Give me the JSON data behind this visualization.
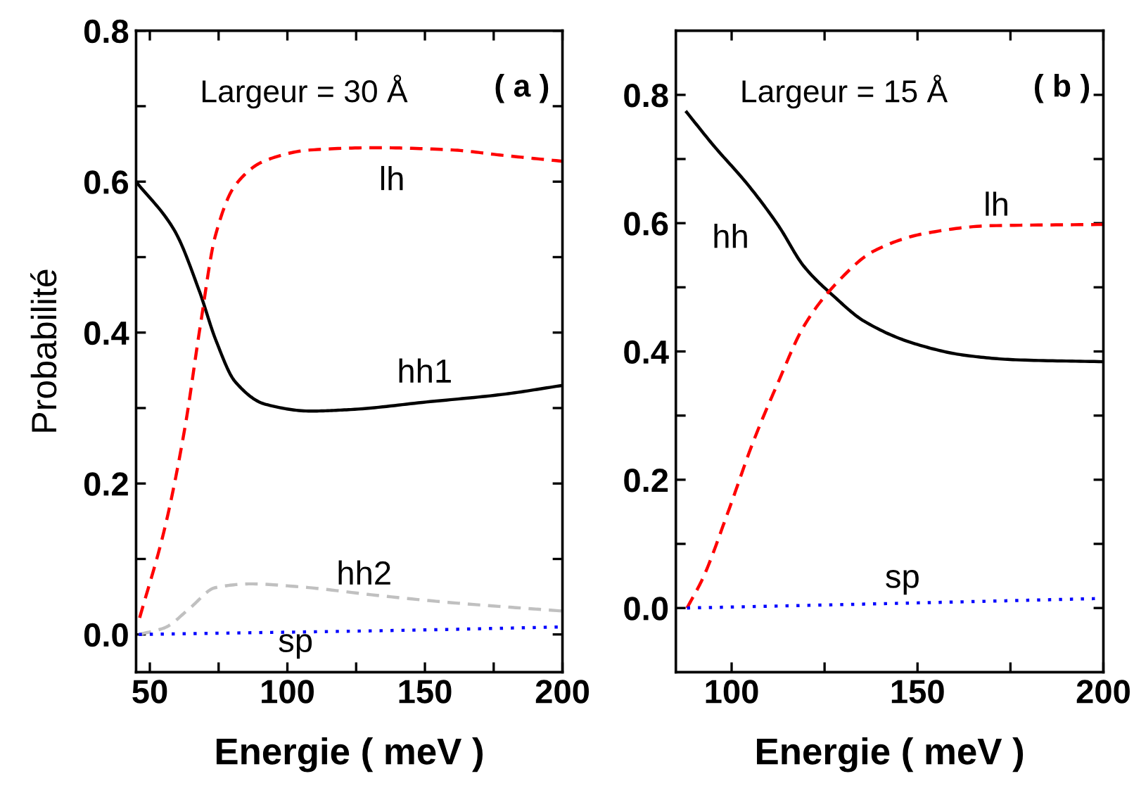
{
  "chart_data": [
    {
      "type": "line",
      "xlabel": "Energie ( meV )",
      "ylabel": "Probabilité",
      "xlim": [
        45,
        200
      ],
      "ylim": [
        -0.05,
        0.8
      ],
      "xticks": [
        50,
        {
          "value": 75,
          "label": null
        },
        100,
        {
          "value": 125,
          "label": null
        },
        150,
        {
          "value": 175,
          "label": null
        },
        200
      ],
      "yticks": [
        {
          "value": 0.0,
          "label": "0.0"
        },
        {
          "value": 0.1,
          "label": null
        },
        0.2,
        {
          "value": 0.3,
          "label": null
        },
        0.4,
        {
          "value": 0.5,
          "label": null
        },
        0.6,
        {
          "value": 0.7,
          "label": null
        },
        0.8
      ],
      "grid": false,
      "legend": false,
      "series": [
        {
          "name": "hh1",
          "color": "#000000",
          "line_style": "solid",
          "x": [
            45,
            59,
            68,
            74,
            81,
            92,
            108.5,
            123,
            150.5,
            178,
            200
          ],
          "values": [
            0.6,
            0.535,
            0.455,
            0.39,
            0.335,
            0.305,
            0.296,
            0.298,
            0.308,
            0.318,
            0.33
          ]
        },
        {
          "name": "lh",
          "color": "#ff0000",
          "line_style": "dashed",
          "x": [
            46.3,
            55.5,
            62.8,
            68.3,
            73.8,
            81,
            92,
            108.5,
            132,
            160,
            178,
            200
          ],
          "values": [
            0.022,
            0.142,
            0.275,
            0.408,
            0.528,
            0.595,
            0.628,
            0.642,
            0.645,
            0.642,
            0.635,
            0.627
          ]
        },
        {
          "name": "hh2",
          "color": "#c0c0c0",
          "line_style": "dashed",
          "x": [
            46,
            55.5,
            64.6,
            73.8,
            86.6,
            104.8,
            132,
            160,
            200
          ],
          "values": [
            0.0,
            0.009,
            0.035,
            0.062,
            0.067,
            0.063,
            0.052,
            0.042,
            0.031
          ]
        },
        {
          "name": "sp",
          "color": "#0000ff",
          "line_style": "dotted",
          "x": [
            46,
            100,
            150,
            200
          ],
          "values": [
            0.0,
            0.003,
            0.006,
            0.01
          ]
        }
      ],
      "annotations": [
        "Largeur = 30 Å",
        "( a )"
      ]
    },
    {
      "type": "line",
      "xlabel": "Energie ( meV )",
      "xlim": [
        85,
        200
      ],
      "ylim": [
        -0.1,
        0.9
      ],
      "xticks": [
        100,
        {
          "value": 125,
          "label": null
        },
        150,
        {
          "value": 175,
          "label": null
        },
        200
      ],
      "yticks": [
        {
          "value": 0.0,
          "label": "0.0"
        },
        {
          "value": 0.1,
          "label": null
        },
        0.2,
        {
          "value": 0.3,
          "label": null
        },
        0.4,
        {
          "value": 0.5,
          "label": null
        },
        0.6,
        {
          "value": 0.7,
          "label": null
        },
        0.8
      ],
      "grid": false,
      "legend": false,
      "series": [
        {
          "name": "hh",
          "color": "#000000",
          "line_style": "solid",
          "x": [
            87.9,
            95,
            104.5,
            112.6,
            119.4,
            127.5,
            135.7,
            149.3,
            162.8,
            176.4,
            200
          ],
          "values": [
            0.773,
            0.722,
            0.659,
            0.596,
            0.533,
            0.486,
            0.447,
            0.412,
            0.394,
            0.387,
            0.384
          ]
        },
        {
          "name": "lh",
          "color": "#ff0000",
          "line_style": "dashed",
          "x": [
            88,
            92.3,
            99,
            105.8,
            112.6,
            119.4,
            127.5,
            138.4,
            152,
            169.6,
            200
          ],
          "values": [
            0.0,
            0.047,
            0.149,
            0.259,
            0.353,
            0.439,
            0.502,
            0.557,
            0.584,
            0.596,
            0.598
          ]
        },
        {
          "name": "sp",
          "color": "#0000ff",
          "line_style": "dotted",
          "x": [
            88,
            150,
            200
          ],
          "values": [
            0.0,
            0.008,
            0.015
          ]
        }
      ],
      "annotations": [
        "Largeur = 15 Å",
        "( b )"
      ]
    }
  ]
}
